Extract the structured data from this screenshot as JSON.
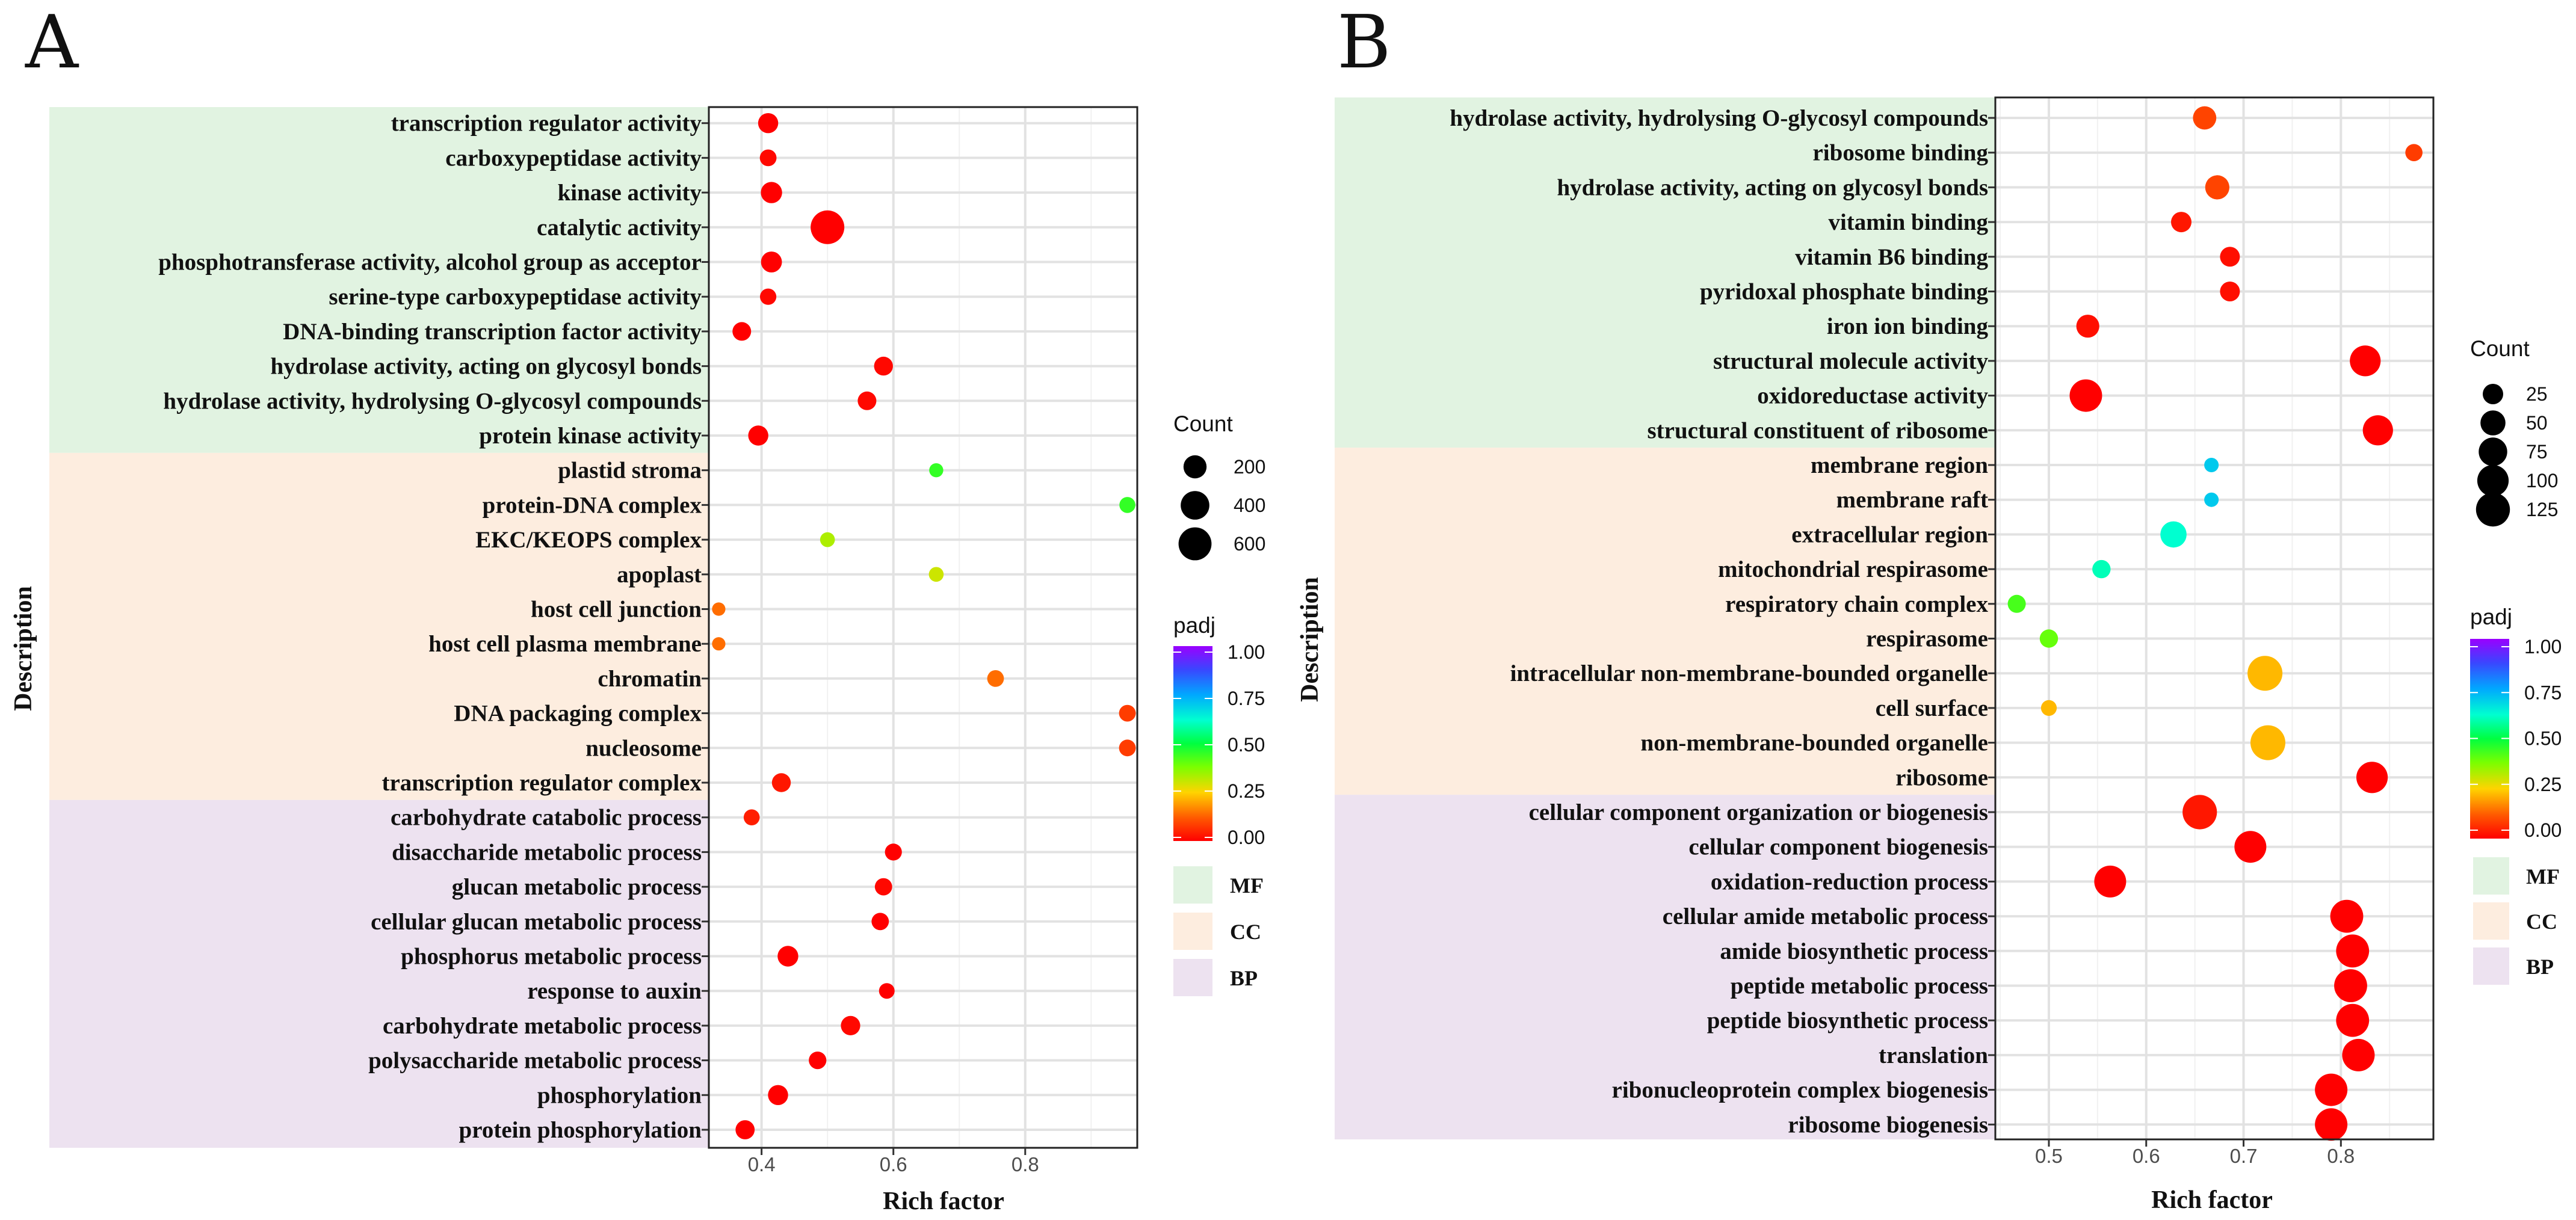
{
  "legend_titles": {
    "count": "Count",
    "padj": "padj"
  },
  "categories": [
    {
      "name": "MF",
      "color": "#e1f3e1"
    },
    {
      "name": "CC",
      "color": "#fdeddf"
    },
    {
      "name": "BP",
      "color": "#ede2f0"
    }
  ],
  "chart_data": [
    {
      "type": "scatter",
      "panel": "A",
      "xlabel": "Rich factor",
      "ylabel": "Description",
      "xlim": [
        0.32,
        0.97
      ],
      "xticks": [
        0.4,
        0.6,
        0.8
      ],
      "xtick_labels": [
        "0.4",
        "0.6",
        "0.8"
      ],
      "count_legend": {
        "values": [
          200,
          400,
          600
        ],
        "labels": [
          "200",
          "400",
          "600"
        ]
      },
      "padj_ticks": [
        "1.00",
        "0.75",
        "0.50",
        "0.25",
        "0.00"
      ],
      "terms": [
        {
          "label": "transcription regulator activity",
          "category": "MF",
          "rich_factor": 0.41,
          "count": 120,
          "padj": 0.0
        },
        {
          "label": "carboxypeptidase activity",
          "category": "MF",
          "rich_factor": 0.41,
          "count": 55,
          "padj": 0.01
        },
        {
          "label": "kinase activity",
          "category": "MF",
          "rich_factor": 0.415,
          "count": 150,
          "padj": 0.0
        },
        {
          "label": "catalytic activity",
          "category": "MF",
          "rich_factor": 0.5,
          "count": 640,
          "padj": 0.0
        },
        {
          "label": "phosphotransferase activity, alcohol group as acceptor",
          "category": "MF",
          "rich_factor": 0.415,
          "count": 140,
          "padj": 0.0
        },
        {
          "label": "serine-type carboxypeptidase activity",
          "category": "MF",
          "rich_factor": 0.41,
          "count": 50,
          "padj": 0.01
        },
        {
          "label": "DNA-binding transcription factor activity",
          "category": "MF",
          "rich_factor": 0.37,
          "count": 90,
          "padj": 0.0
        },
        {
          "label": "hydrolase activity, acting on glycosyl bonds",
          "category": "MF",
          "rich_factor": 0.585,
          "count": 95,
          "padj": 0.01
        },
        {
          "label": "hydrolase activity, hydrolysing O-glycosyl compounds",
          "category": "MF",
          "rich_factor": 0.56,
          "count": 90,
          "padj": 0.01
        },
        {
          "label": "protein kinase activity",
          "category": "MF",
          "rich_factor": 0.395,
          "count": 120,
          "padj": 0.0
        },
        {
          "label": "plastid stroma",
          "category": "CC",
          "rich_factor": 0.665,
          "count": 22,
          "padj": 0.45
        },
        {
          "label": "protein-DNA complex",
          "category": "CC",
          "rich_factor": 0.955,
          "count": 45,
          "padj": 0.45
        },
        {
          "label": "EKC/KEOPS complex",
          "category": "CC",
          "rich_factor": 0.5,
          "count": 30,
          "padj": 0.33
        },
        {
          "label": "apoplast",
          "category": "CC",
          "rich_factor": 0.665,
          "count": 30,
          "padj": 0.3
        },
        {
          "label": "host cell junction",
          "category": "CC",
          "rich_factor": 0.335,
          "count": 15,
          "padj": 0.14
        },
        {
          "label": "host cell plasma membrane",
          "category": "CC",
          "rich_factor": 0.335,
          "count": 15,
          "padj": 0.14
        },
        {
          "label": "chromatin",
          "category": "CC",
          "rich_factor": 0.755,
          "count": 55,
          "padj": 0.14
        },
        {
          "label": "DNA packaging complex",
          "category": "CC",
          "rich_factor": 0.955,
          "count": 55,
          "padj": 0.08
        },
        {
          "label": "nucleosome",
          "category": "CC",
          "rich_factor": 0.955,
          "count": 55,
          "padj": 0.08
        },
        {
          "label": "transcription regulator complex",
          "category": "CC",
          "rich_factor": 0.43,
          "count": 95,
          "padj": 0.03
        },
        {
          "label": "carbohydrate catabolic process",
          "category": "BP",
          "rich_factor": 0.385,
          "count": 45,
          "padj": 0.04
        },
        {
          "label": "disaccharide metabolic process",
          "category": "BP",
          "rich_factor": 0.6,
          "count": 60,
          "padj": 0.0
        },
        {
          "label": "glucan metabolic process",
          "category": "BP",
          "rich_factor": 0.585,
          "count": 65,
          "padj": 0.01
        },
        {
          "label": "cellular glucan metabolic process",
          "category": "BP",
          "rich_factor": 0.58,
          "count": 65,
          "padj": 0.0
        },
        {
          "label": "phosphorus metabolic process",
          "category": "BP",
          "rich_factor": 0.44,
          "count": 135,
          "padj": 0.0
        },
        {
          "label": "response to auxin",
          "category": "BP",
          "rich_factor": 0.59,
          "count": 40,
          "padj": 0.0
        },
        {
          "label": "carbohydrate metabolic process",
          "category": "BP",
          "rich_factor": 0.535,
          "count": 105,
          "padj": 0.01
        },
        {
          "label": "polysaccharide metabolic process",
          "category": "BP",
          "rich_factor": 0.485,
          "count": 70,
          "padj": 0.0
        },
        {
          "label": "phosphorylation",
          "category": "BP",
          "rich_factor": 0.425,
          "count": 120,
          "padj": 0.0
        },
        {
          "label": "protein phosphorylation",
          "category": "BP",
          "rich_factor": 0.375,
          "count": 100,
          "padj": 0.0
        }
      ]
    },
    {
      "type": "scatter",
      "panel": "B",
      "xlabel": "Rich factor",
      "ylabel": "Description",
      "xlim": [
        0.445,
        0.895
      ],
      "xticks": [
        0.5,
        0.6,
        0.7,
        0.8
      ],
      "xtick_labels": [
        "0.5",
        "0.6",
        "0.7",
        "0.8"
      ],
      "count_legend": {
        "values": [
          25,
          50,
          75,
          100,
          125
        ],
        "labels": [
          "25",
          "50",
          "75",
          "100",
          "125"
        ]
      },
      "padj_ticks": [
        "1.00",
        "0.75",
        "0.50",
        "0.25",
        "0.00"
      ],
      "terms": [
        {
          "label": "hydrolase activity, hydrolysing O-glycosyl compounds",
          "category": "MF",
          "rich_factor": 0.66,
          "count": 40,
          "padj": 0.09
        },
        {
          "label": "ribosome binding",
          "category": "MF",
          "rich_factor": 0.875,
          "count": 12,
          "padj": 0.08
        },
        {
          "label": "hydrolase activity, acting on glycosyl bonds",
          "category": "MF",
          "rich_factor": 0.673,
          "count": 45,
          "padj": 0.09
        },
        {
          "label": "vitamin binding",
          "category": "MF",
          "rich_factor": 0.636,
          "count": 25,
          "padj": 0.03
        },
        {
          "label": "vitamin B6 binding",
          "category": "MF",
          "rich_factor": 0.686,
          "count": 22,
          "padj": 0.02
        },
        {
          "label": "pyridoxal phosphate binding",
          "category": "MF",
          "rich_factor": 0.686,
          "count": 22,
          "padj": 0.02
        },
        {
          "label": "iron ion binding",
          "category": "MF",
          "rich_factor": 0.54,
          "count": 38,
          "padj": 0.02
        },
        {
          "label": "structural molecule activity",
          "category": "MF",
          "rich_factor": 0.825,
          "count": 95,
          "padj": 0.0
        },
        {
          "label": "oxidoreductase activity",
          "category": "MF",
          "rich_factor": 0.538,
          "count": 110,
          "padj": 0.0
        },
        {
          "label": "structural constituent of ribosome",
          "category": "MF",
          "rich_factor": 0.838,
          "count": 90,
          "padj": 0.0
        },
        {
          "label": "membrane region",
          "category": "CC",
          "rich_factor": 0.667,
          "count": 5,
          "padj": 0.7
        },
        {
          "label": "membrane raft",
          "category": "CC",
          "rich_factor": 0.667,
          "count": 5,
          "padj": 0.7
        },
        {
          "label": "extracellular region",
          "category": "CC",
          "rich_factor": 0.628,
          "count": 58,
          "padj": 0.62
        },
        {
          "label": "mitochondrial respirasome",
          "category": "CC",
          "rich_factor": 0.554,
          "count": 16,
          "padj": 0.6
        },
        {
          "label": "respiratory chain complex",
          "category": "CC",
          "rich_factor": 0.467,
          "count": 15,
          "padj": 0.43
        },
        {
          "label": "respirasome",
          "category": "CC",
          "rich_factor": 0.5,
          "count": 16,
          "padj": 0.4
        },
        {
          "label": "intracellular non-membrane-bounded organelle",
          "category": "CC",
          "rich_factor": 0.722,
          "count": 135,
          "padj": 0.22
        },
        {
          "label": "cell surface",
          "category": "CC",
          "rich_factor": 0.5,
          "count": 8,
          "padj": 0.22
        },
        {
          "label": "non-membrane-bounded organelle",
          "category": "CC",
          "rich_factor": 0.725,
          "count": 135,
          "padj": 0.22
        },
        {
          "label": "ribosome",
          "category": "CC",
          "rich_factor": 0.832,
          "count": 100,
          "padj": 0.0
        },
        {
          "label": "cellular component organization or biogenesis",
          "category": "BP",
          "rich_factor": 0.655,
          "count": 130,
          "padj": 0.03
        },
        {
          "label": "cellular component biogenesis",
          "category": "BP",
          "rich_factor": 0.707,
          "count": 105,
          "padj": 0.0
        },
        {
          "label": "oxidation-reduction process",
          "category": "BP",
          "rich_factor": 0.563,
          "count": 105,
          "padj": 0.0
        },
        {
          "label": "cellular amide metabolic process",
          "category": "BP",
          "rich_factor": 0.806,
          "count": 115,
          "padj": 0.0
        },
        {
          "label": "amide biosynthetic process",
          "category": "BP",
          "rich_factor": 0.812,
          "count": 115,
          "padj": 0.0
        },
        {
          "label": "peptide metabolic process",
          "category": "BP",
          "rich_factor": 0.81,
          "count": 115,
          "padj": 0.0
        },
        {
          "label": "peptide biosynthetic process",
          "category": "BP",
          "rich_factor": 0.812,
          "count": 115,
          "padj": 0.0
        },
        {
          "label": "translation",
          "category": "BP",
          "rich_factor": 0.818,
          "count": 110,
          "padj": 0.0
        },
        {
          "label": "ribonucleoprotein complex biogenesis",
          "category": "BP",
          "rich_factor": 0.79,
          "count": 110,
          "padj": 0.0
        },
        {
          "label": "ribosome biogenesis",
          "category": "BP",
          "rich_factor": 0.79,
          "count": 110,
          "padj": 0.0
        }
      ]
    }
  ]
}
